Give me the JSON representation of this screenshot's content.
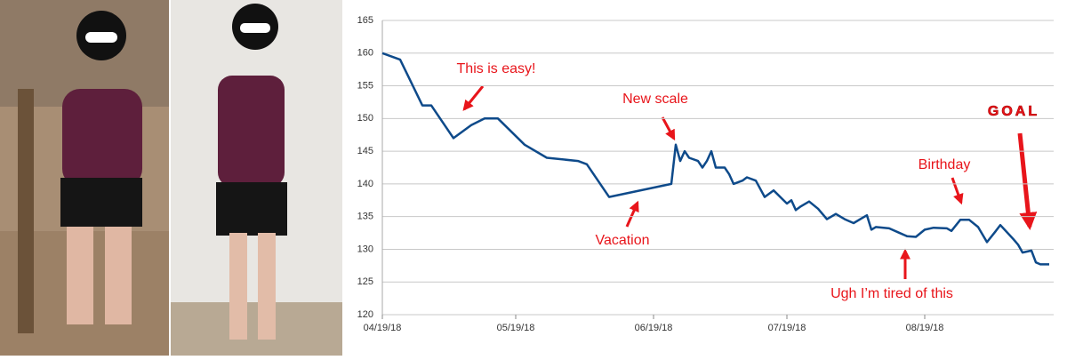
{
  "chart_data": {
    "type": "line",
    "x": [
      "2018-04-19",
      "2018-04-23",
      "2018-04-28",
      "2018-04-30",
      "2018-05-05",
      "2018-05-09",
      "2018-05-12",
      "2018-05-15",
      "2018-05-21",
      "2018-05-26",
      "2018-06-02",
      "2018-06-04",
      "2018-06-09",
      "2018-06-23",
      "2018-06-24",
      "2018-06-25",
      "2018-06-26",
      "2018-06-27",
      "2018-06-29",
      "2018-06-30",
      "2018-07-01",
      "2018-07-02",
      "2018-07-03",
      "2018-07-05",
      "2018-07-06",
      "2018-07-07",
      "2018-07-09",
      "2018-07-10",
      "2018-07-12",
      "2018-07-14",
      "2018-07-16",
      "2018-07-19",
      "2018-07-20",
      "2018-07-21",
      "2018-07-22",
      "2018-07-24",
      "2018-07-26",
      "2018-07-28",
      "2018-07-30",
      "2018-08-01",
      "2018-08-03",
      "2018-08-05",
      "2018-08-06",
      "2018-08-07",
      "2018-08-08",
      "2018-08-11",
      "2018-08-13",
      "2018-08-15",
      "2018-08-17",
      "2018-08-19",
      "2018-08-21",
      "2018-08-24",
      "2018-08-25",
      "2018-08-27",
      "2018-08-29",
      "2018-08-31",
      "2018-09-02",
      "2018-09-04",
      "2018-09-05",
      "2018-09-08",
      "2018-09-09",
      "2018-09-10",
      "2018-09-12",
      "2018-09-13",
      "2018-09-14",
      "2018-09-16"
    ],
    "values": [
      160,
      159,
      152,
      152,
      147,
      149,
      150,
      150,
      146,
      144,
      143.5,
      143,
      138,
      140,
      146,
      143.5,
      145,
      144,
      143.5,
      142.5,
      143.5,
      145,
      142.5,
      142.5,
      141.5,
      140,
      140.5,
      141,
      140.5,
      138,
      139,
      137,
      137.5,
      136,
      136.5,
      137.3,
      136.2,
      134.6,
      135.4,
      134.6,
      134,
      134.8,
      135.2,
      133,
      133.4,
      133.2,
      132.6,
      132,
      131.9,
      133,
      133.3,
      133.2,
      132.8,
      134.5,
      134.5,
      133.4,
      131.1,
      132.8,
      133.7,
      131.5,
      130.7,
      129.5,
      129.8,
      128,
      127.7,
      127.7
    ],
    "color": "#0e4a8a",
    "xlim": [
      "2018-04-19",
      "2018-09-17"
    ],
    "xticks": [
      {
        "value": "2018-04-19",
        "label": "04/19/18"
      },
      {
        "value": "2018-05-19",
        "label": "05/19/18"
      },
      {
        "value": "2018-06-19",
        "label": "06/19/18"
      },
      {
        "value": "2018-07-19",
        "label": "07/19/18"
      },
      {
        "value": "2018-08-19",
        "label": "08/19/18"
      }
    ],
    "ylim": [
      120,
      165
    ],
    "yticks": [
      120,
      125,
      130,
      135,
      140,
      145,
      150,
      155,
      160,
      165
    ],
    "grid": true,
    "annotations": [
      "This is easy!",
      "New scale",
      "Vacation",
      "Birthday",
      "Ugh I’m tired of this",
      "GOAL"
    ]
  }
}
